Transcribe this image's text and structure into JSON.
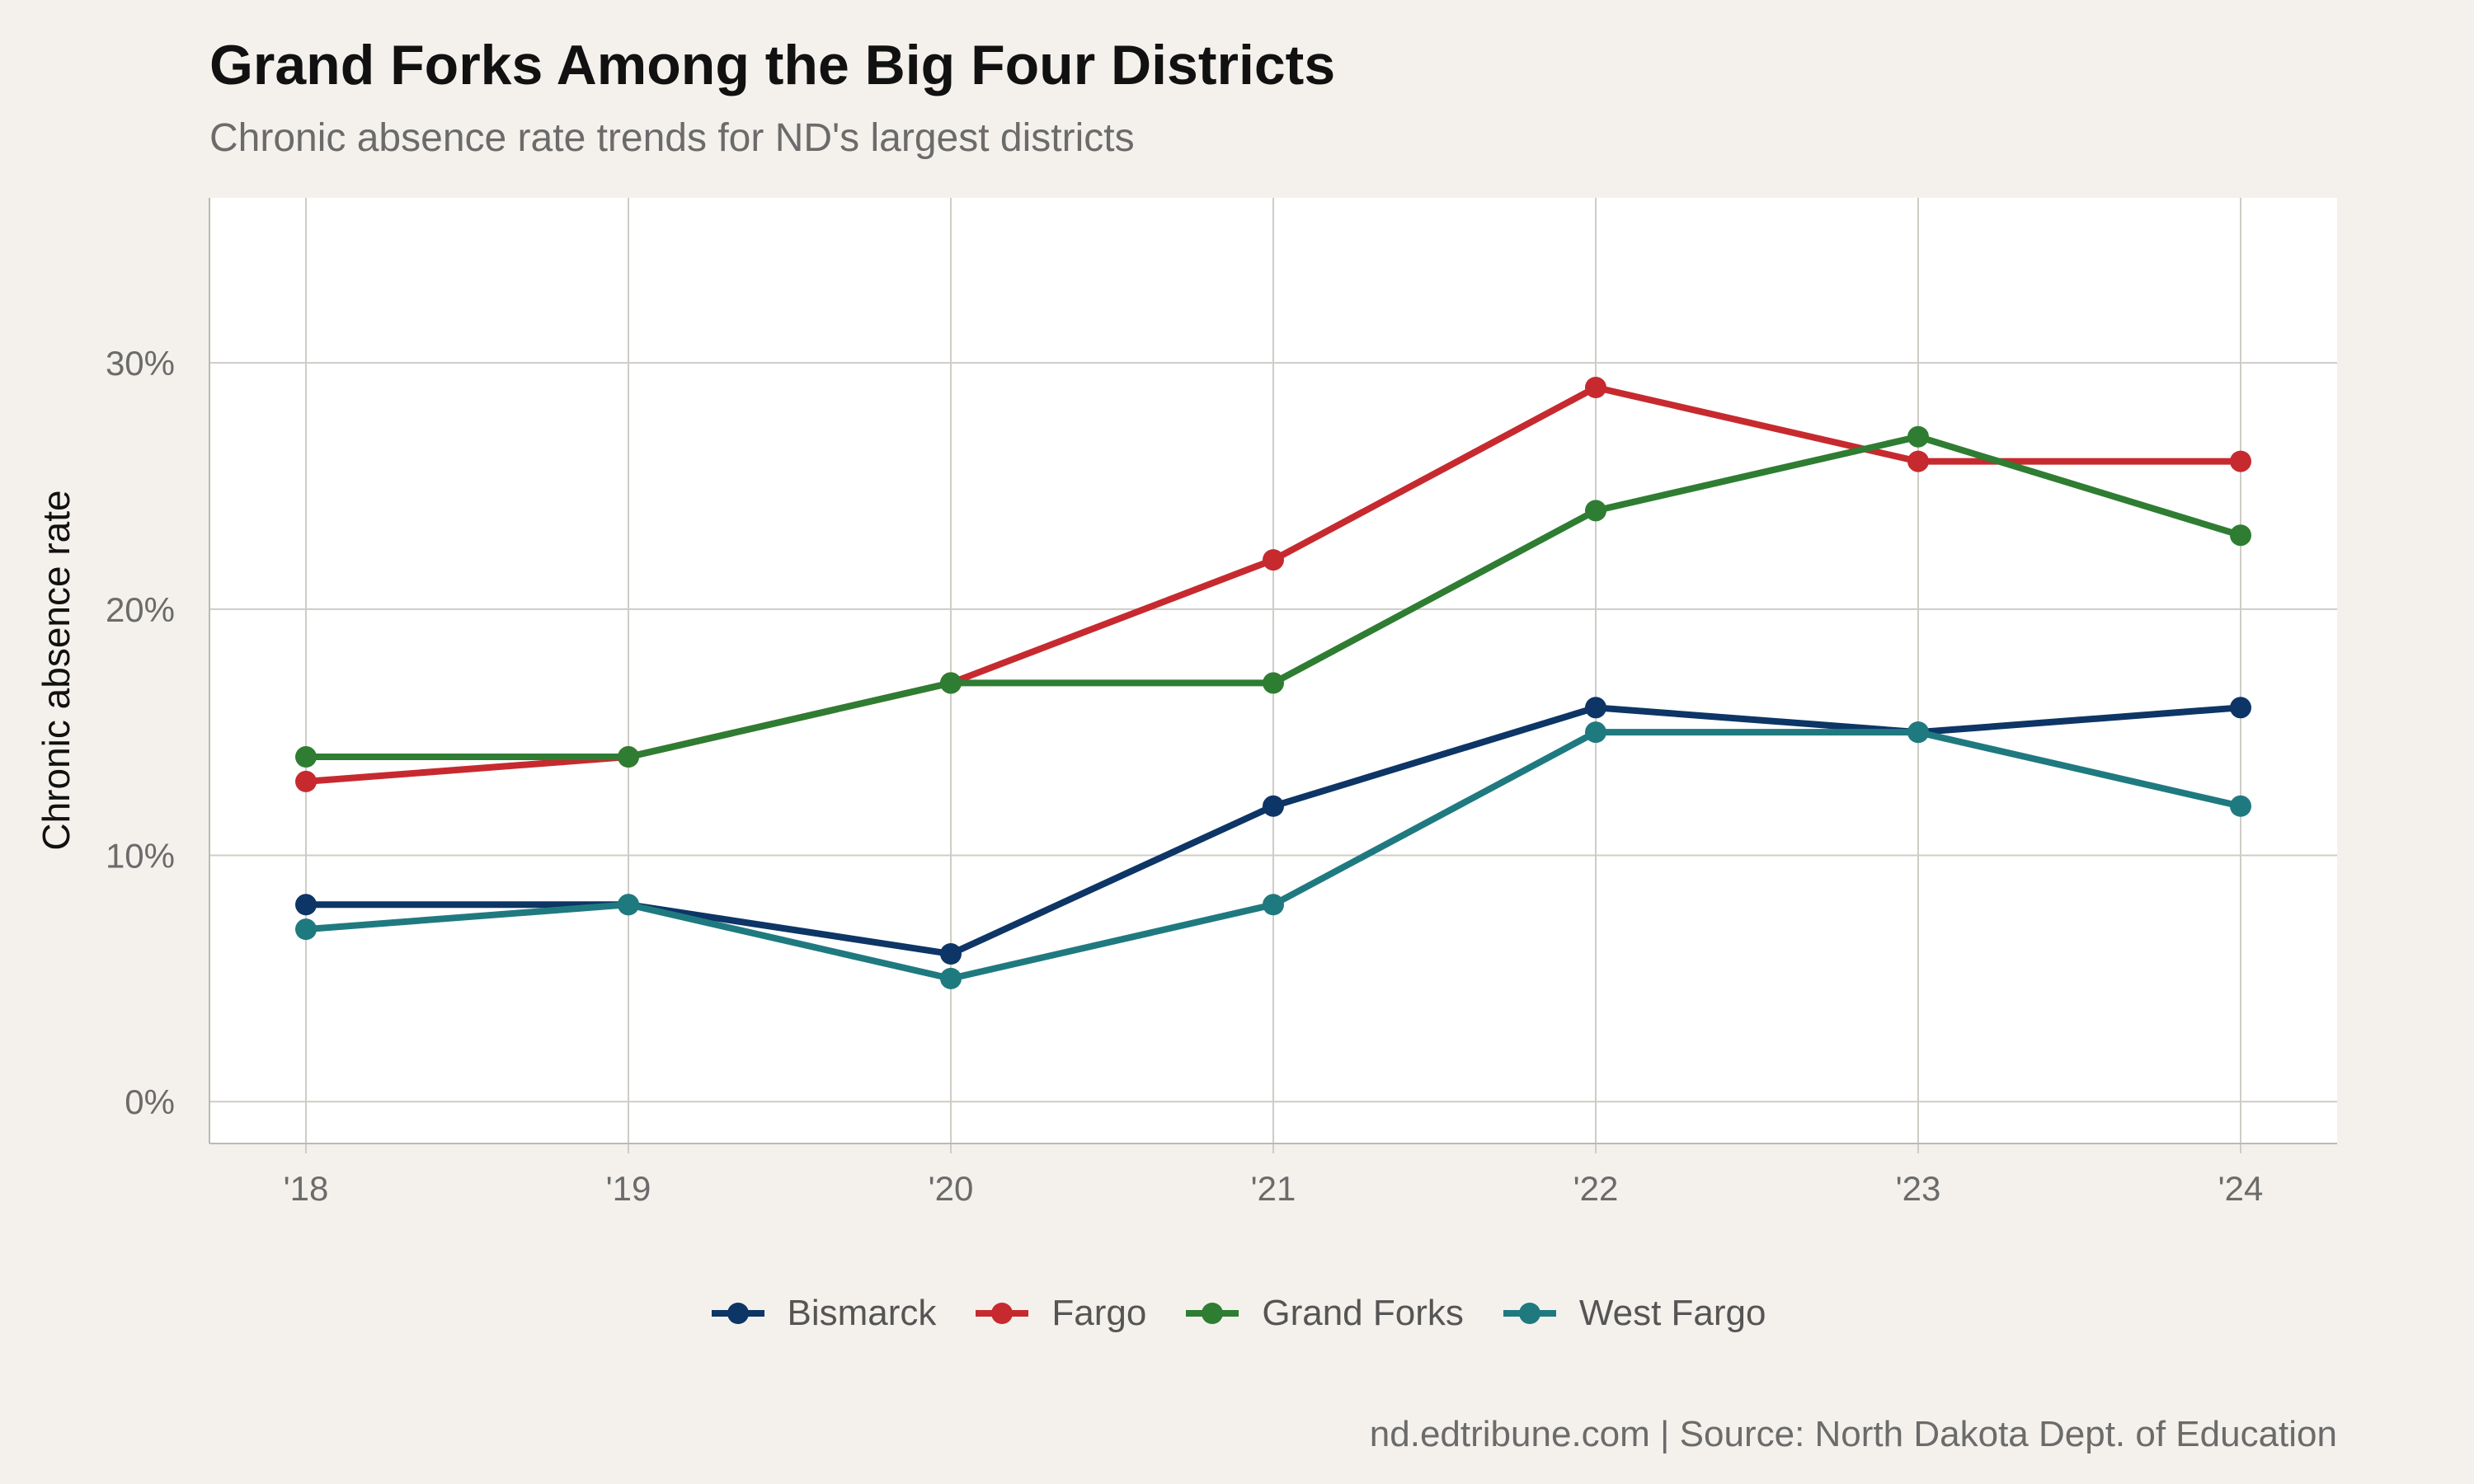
{
  "chart_data": {
    "type": "line",
    "title": "Grand Forks Among the Big Four Districts",
    "subtitle": "Chronic absence rate trends for ND's largest districts",
    "ylabel": "Chronic absence rate",
    "xlabel": "",
    "categories": [
      "'18",
      "'19",
      "'20",
      "'21",
      "'22",
      "'23",
      "'24"
    ],
    "ylim": [
      -1.7,
      36.7
    ],
    "yticks": [
      0,
      10,
      20,
      30
    ],
    "ytick_labels": [
      "0%",
      "10%",
      "20%",
      "30%"
    ],
    "grid": true,
    "legend_position": "bottom",
    "caption": "nd.edtribune.com | Source: North Dakota Dept. of Education",
    "series": [
      {
        "name": "Bismarck",
        "color": "#0d3566",
        "values": [
          8,
          8,
          6,
          12,
          16,
          15,
          16
        ]
      },
      {
        "name": "Fargo",
        "color": "#c62a2f",
        "values": [
          13,
          14,
          17,
          22,
          29,
          26,
          26
        ]
      },
      {
        "name": "Grand Forks",
        "color": "#2e7d32",
        "values": [
          14,
          14,
          17,
          17,
          24,
          27,
          23
        ]
      },
      {
        "name": "West Fargo",
        "color": "#1f7a80",
        "values": [
          7,
          8,
          5,
          8,
          15,
          15,
          12
        ]
      }
    ],
    "draw_order": [
      "Fargo",
      "Grand Forks",
      "Bismarck",
      "West Fargo"
    ],
    "colors": {
      "background": "#f4f1ec",
      "panel": "#ffffff",
      "grid": "#cfccc6",
      "axis_text": "#6b6b6b",
      "title": "#111111"
    }
  }
}
